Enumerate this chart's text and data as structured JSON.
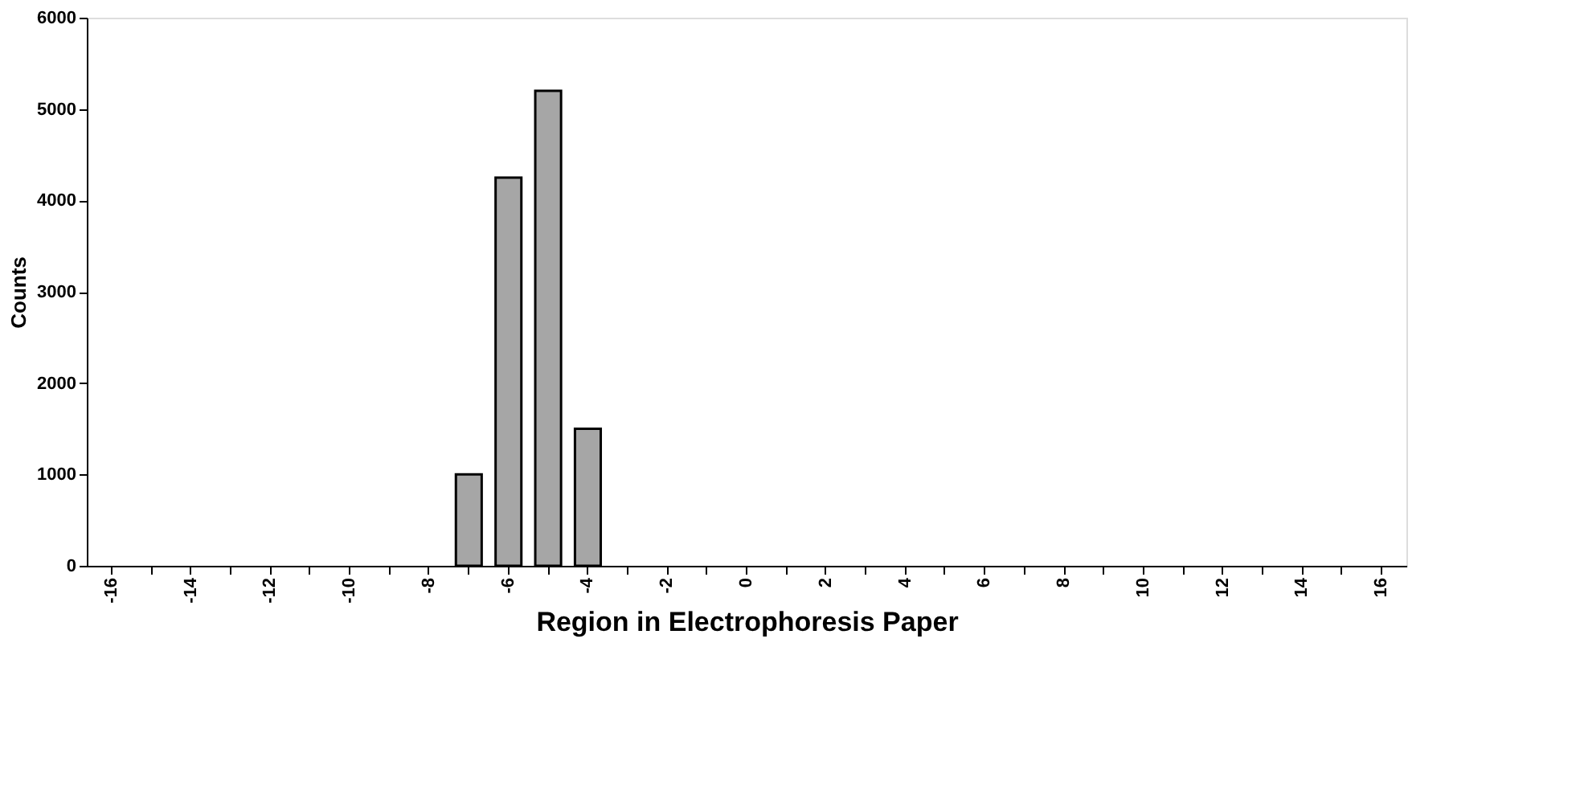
{
  "chart_data": {
    "type": "bar",
    "xlabel": "Region in Electrophoresis Paper",
    "ylabel": "Counts",
    "categories": [
      "-16",
      null,
      "-14",
      null,
      "-12",
      null,
      "-10",
      null,
      "-8",
      null,
      "-6",
      null,
      "-4",
      null,
      "-2",
      null,
      "0",
      null,
      "2",
      null,
      "4",
      null,
      "6",
      null,
      "8",
      null,
      "10",
      null,
      "12",
      null,
      "14",
      null,
      "16"
    ],
    "values": [
      0,
      0,
      0,
      0,
      0,
      0,
      0,
      0,
      0,
      1000,
      4250,
      5200,
      1500,
      0,
      0,
      0,
      0,
      0,
      0,
      0,
      0,
      0,
      0,
      0,
      0,
      0,
      0,
      0,
      0,
      0,
      0,
      0,
      0
    ],
    "color": "#a6a6a6",
    "ylim": [
      0,
      6000
    ],
    "yticks": [
      0,
      1000,
      2000,
      3000,
      4000,
      5000,
      6000
    ],
    "grid": false
  }
}
